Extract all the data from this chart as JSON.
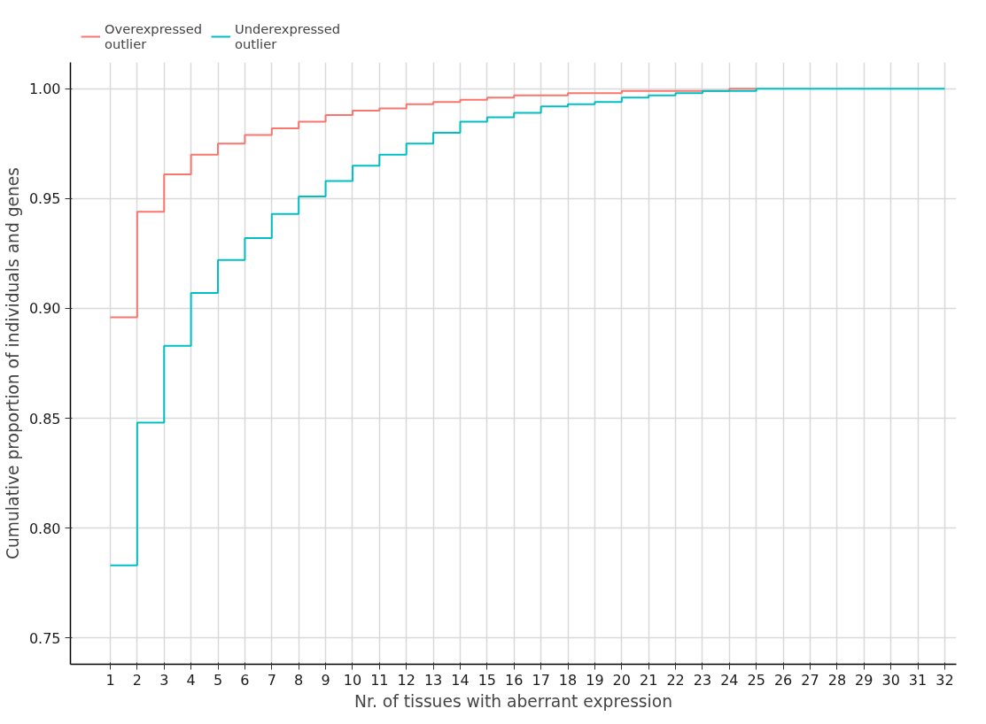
{
  "chart_data": {
    "type": "step",
    "xlabel": "Nr. of tissues with aberrant expression",
    "ylabel": "Cumulative proportion of individuals and genes",
    "x": [
      1,
      2,
      3,
      4,
      5,
      6,
      7,
      8,
      9,
      10,
      11,
      12,
      13,
      14,
      15,
      16,
      17,
      18,
      19,
      20,
      21,
      22,
      23,
      24,
      25,
      26,
      27,
      28,
      29,
      30,
      31,
      32
    ],
    "series": [
      {
        "name": "Overexpressed\noutlier",
        "color": "#f8766d",
        "values": [
          0.896,
          0.944,
          0.961,
          0.97,
          0.975,
          0.979,
          0.982,
          0.985,
          0.988,
          0.99,
          0.991,
          0.993,
          0.994,
          0.995,
          0.996,
          0.997,
          0.997,
          0.998,
          0.998,
          0.999,
          0.999,
          0.999,
          0.999,
          1.0,
          1,
          null,
          null,
          null,
          null,
          null,
          null,
          null
        ]
      },
      {
        "name": "Underexpressed\noutlier",
        "color": "#00bfc4",
        "values": [
          0.783,
          0.848,
          0.883,
          0.907,
          0.922,
          0.932,
          0.943,
          0.951,
          0.958,
          0.965,
          0.97,
          0.975,
          0.98,
          0.985,
          0.987,
          0.989,
          0.992,
          0.993,
          0.994,
          0.996,
          0.997,
          0.998,
          0.999,
          0.999,
          1,
          1,
          1,
          1,
          1,
          1,
          1,
          1
        ]
      }
    ],
    "xlim": [
      -0.48,
      32.43
    ],
    "ylim": [
      0.738,
      1.012
    ],
    "xticks": [
      1,
      2,
      3,
      4,
      5,
      6,
      7,
      8,
      9,
      10,
      11,
      12,
      13,
      14,
      15,
      16,
      17,
      18,
      19,
      20,
      21,
      22,
      23,
      24,
      25,
      26,
      27,
      28,
      29,
      30,
      31,
      32
    ],
    "yticks": [
      {
        "value": 0.75,
        "label": "0.75"
      },
      {
        "value": 0.8,
        "label": "0.80"
      },
      {
        "value": 0.85,
        "label": "0.85"
      },
      {
        "value": 0.9,
        "label": "0.90"
      },
      {
        "value": 0.95,
        "label": "0.95"
      },
      {
        "value": 1,
        "label": "1.00"
      }
    ],
    "grid": true,
    "legend": "top left"
  }
}
